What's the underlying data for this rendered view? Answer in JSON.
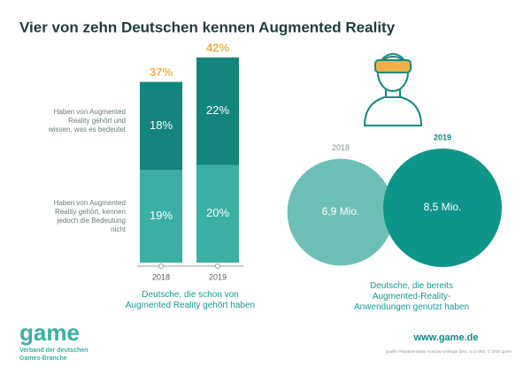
{
  "title": "Vier von zehn Deutschen kennen Augmented Reality",
  "chart_data": [
    {
      "type": "stacked-bar",
      "categories": [
        "2018",
        "2019"
      ],
      "series": [
        {
          "name": "Haben von Augmented Reality gehört, kennen jedoch die Bedeutung nicht",
          "color": "#3aafa2",
          "values": [
            19,
            20
          ],
          "value_labels": [
            "19%",
            "20%"
          ]
        },
        {
          "name": "Haben von Augmented Reality gehört und wissen, was es bedeutet",
          "color": "#13857c",
          "values": [
            18,
            22
          ],
          "value_labels": [
            "18%",
            "22%"
          ]
        }
      ],
      "totals": [
        37,
        42
      ],
      "total_labels": [
        "37%",
        "42%"
      ],
      "total_color": "#f0b14a",
      "ylim": [
        0,
        42
      ],
      "caption": "Deutsche, die schon von Augmented Reality gehört haben"
    },
    {
      "type": "bubble",
      "categories": [
        "2018",
        "2019"
      ],
      "values": [
        6.9,
        8.5
      ],
      "value_labels": [
        "6,9 Mio.",
        "8,5 Mio."
      ],
      "colors": [
        "#6dbfb5",
        "#0e958a"
      ],
      "caption": "Deutsche, die bereits Augmented-Reality-Anwendungen genutzt haben"
    }
  ],
  "footer": {
    "logo": "game",
    "organization": "Verband der deutschen Games-Branche",
    "url": "www.game.de",
    "source": "Quelle: Repräsentative YouGov-Umfrage (Dez. n=2.090); © 2020 game"
  }
}
